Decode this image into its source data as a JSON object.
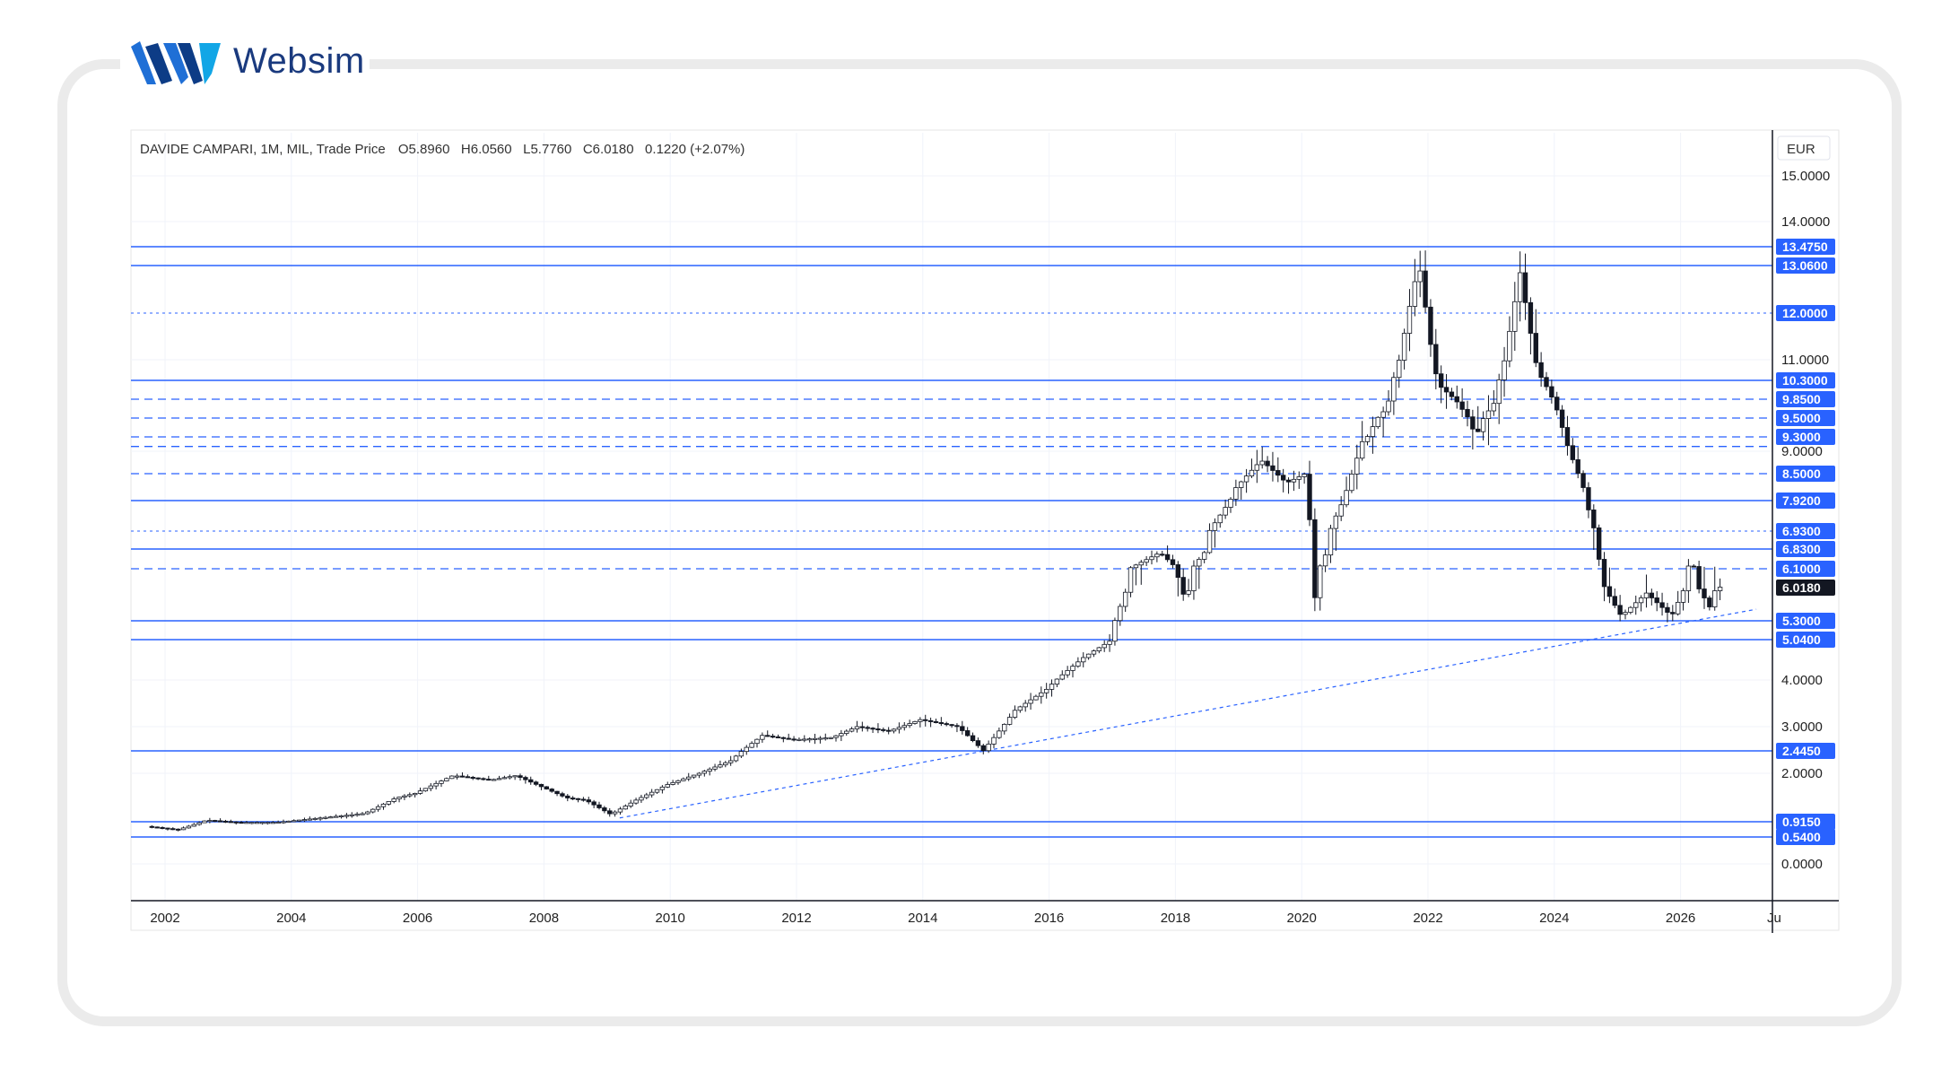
{
  "brand": {
    "name": "Websim"
  },
  "header": {
    "title": "DAVIDE CAMPARI, 1M, MIL, Trade Price",
    "ohlc": "O5.8960   H6.0560   L5.7760   C6.0180   0.1220 (+2.07%)"
  },
  "colors": {
    "level_line": "#2962ff",
    "level_label": "#2962ff",
    "last_price_bg": "#131722",
    "candle_up_fill": "#ffffff",
    "candle_down_fill": "#131722",
    "trendline": "#2962ff"
  },
  "chart_data": {
    "type": "candlestick",
    "currency": "EUR",
    "x_ticks": [
      "2002",
      "2004",
      "2006",
      "2008",
      "2010",
      "2012",
      "2014",
      "2016",
      "2018",
      "2020",
      "2022",
      "2024",
      "2026",
      "Ju"
    ],
    "y_ticks": [
      "15.0000",
      "14.0000",
      "11.0000",
      "9.0000",
      "4.0000",
      "3.0000",
      "2.0000",
      "0.0000"
    ],
    "last_price": "6.0180",
    "levels": [
      {
        "label": "13.4750",
        "value": 13.475,
        "style": "solid",
        "badge": true
      },
      {
        "label": "13.0600",
        "value": 13.06,
        "style": "solid",
        "badge": true
      },
      {
        "label": "12.0000",
        "value": 12.0,
        "style": "dotted",
        "badge": true
      },
      {
        "label": "10.3000",
        "value": 10.3,
        "style": "solid",
        "badge": true
      },
      {
        "label": "9.8500",
        "value": 9.85,
        "style": "dashed",
        "badge": true
      },
      {
        "label": "9.5000",
        "value": 9.5,
        "style": "dashed",
        "badge": true
      },
      {
        "label": "9.3000",
        "value": 9.3,
        "style": "dashed",
        "badge": true
      },
      {
        "label": "",
        "value": 9.1,
        "style": "dashed",
        "badge": false
      },
      {
        "label": "8.5000",
        "value": 8.5,
        "style": "dashed",
        "badge": true
      },
      {
        "label": "7.9200",
        "value": 7.92,
        "style": "solid",
        "badge": true
      },
      {
        "label": "6.9300",
        "value": 6.93,
        "style": "dotted",
        "badge": true
      },
      {
        "label": "6.8300",
        "value": 6.83,
        "style": "solid",
        "badge": true
      },
      {
        "label": "6.1000",
        "value": 6.1,
        "style": "dashed",
        "badge": true
      },
      {
        "label": "5.3000",
        "value": 5.3,
        "style": "solid",
        "badge": true
      },
      {
        "label": "5.0400",
        "value": 5.04,
        "style": "solid",
        "badge": true
      },
      {
        "label": "2.4450",
        "value": 2.445,
        "style": "solid",
        "badge": true
      },
      {
        "label": "0.9150",
        "value": 0.915,
        "style": "solid",
        "badge": true
      },
      {
        "label": "0.5400",
        "value": 0.54,
        "style": "solid",
        "badge": true
      }
    ],
    "trendline": {
      "from": {
        "x": 2009.2,
        "y": 1.0
      },
      "to": {
        "x": 2027.2,
        "y": 5.55
      }
    },
    "price_path": [
      [
        2001.75,
        0.8
      ],
      [
        2002.25,
        0.72
      ],
      [
        2002.7,
        0.95
      ],
      [
        2003.2,
        0.9
      ],
      [
        2003.8,
        0.9
      ],
      [
        2004.5,
        1.0
      ],
      [
        2005.2,
        1.1
      ],
      [
        2005.7,
        1.45
      ],
      [
        2006.0,
        1.55
      ],
      [
        2006.6,
        1.95
      ],
      [
        2007.2,
        1.85
      ],
      [
        2007.6,
        1.95
      ],
      [
        2008.0,
        1.7
      ],
      [
        2008.4,
        1.45
      ],
      [
        2008.7,
        1.4
      ],
      [
        2009.1,
        1.08
      ],
      [
        2009.5,
        1.4
      ],
      [
        2010.0,
        1.75
      ],
      [
        2010.6,
        2.05
      ],
      [
        2011.0,
        2.25
      ],
      [
        2011.5,
        2.8
      ],
      [
        2012.0,
        2.7
      ],
      [
        2012.6,
        2.75
      ],
      [
        2013.0,
        3.0
      ],
      [
        2013.5,
        2.9
      ],
      [
        2014.0,
        3.15
      ],
      [
        2014.6,
        3.0
      ],
      [
        2015.0,
        2.45
      ],
      [
        2015.5,
        3.35
      ],
      [
        2016.0,
        3.8
      ],
      [
        2016.6,
        4.6
      ],
      [
        2017.0,
        5.0
      ],
      [
        2017.3,
        6.1
      ],
      [
        2017.8,
        6.7
      ],
      [
        2018.2,
        5.8
      ],
      [
        2018.6,
        7.0
      ],
      [
        2019.0,
        8.2
      ],
      [
        2019.4,
        8.8
      ],
      [
        2019.8,
        8.3
      ],
      [
        2020.1,
        8.5
      ],
      [
        2020.25,
        5.8
      ],
      [
        2020.6,
        7.5
      ],
      [
        2021.0,
        9.2
      ],
      [
        2021.4,
        9.7
      ],
      [
        2021.8,
        12.5
      ],
      [
        2021.9,
        13.1
      ],
      [
        2022.2,
        10.2
      ],
      [
        2022.5,
        9.8
      ],
      [
        2022.8,
        9.3
      ],
      [
        2023.1,
        9.8
      ],
      [
        2023.5,
        12.9
      ],
      [
        2023.8,
        10.5
      ],
      [
        2024.2,
        9.3
      ],
      [
        2024.5,
        8.2
      ],
      [
        2024.8,
        6.1
      ],
      [
        2025.1,
        5.4
      ],
      [
        2025.5,
        5.9
      ],
      [
        2025.9,
        5.4
      ],
      [
        2026.2,
        6.3
      ],
      [
        2026.5,
        5.6
      ],
      [
        2026.6,
        6.02
      ]
    ]
  }
}
